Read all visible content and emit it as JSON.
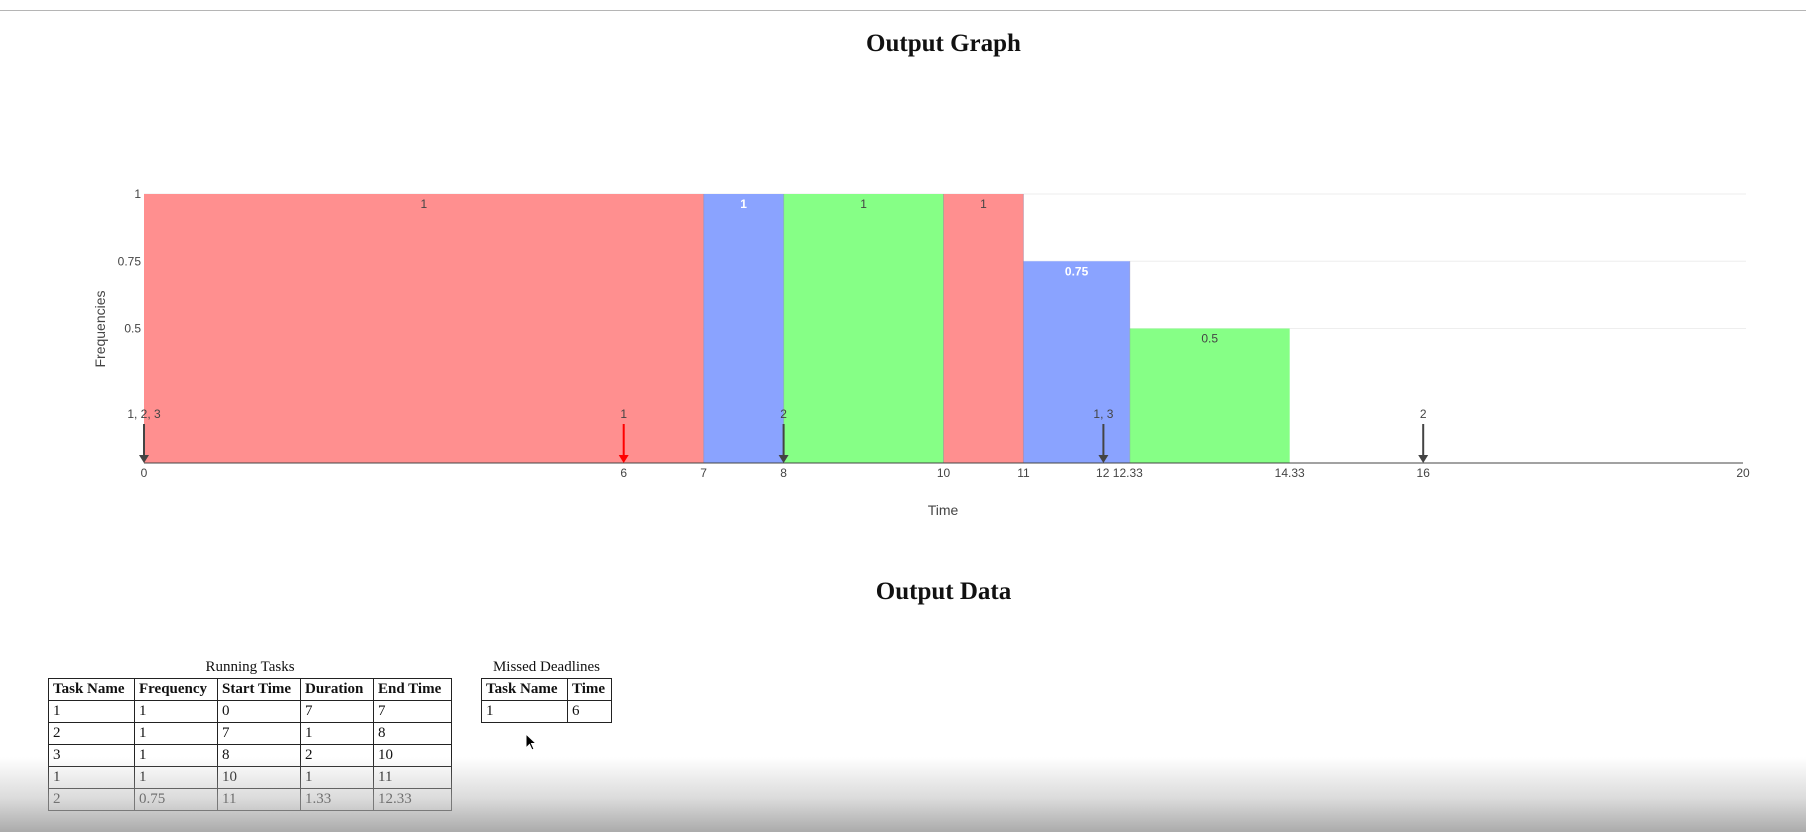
{
  "graph_heading": "Output Graph",
  "data_heading": "Output Data",
  "chart_data": {
    "type": "bar",
    "xlabel": "Time",
    "ylabel": "Frequencies",
    "xlim": [
      0,
      20
    ],
    "ylim": [
      0,
      1
    ],
    "x_ticks": [
      "0",
      "6",
      "7",
      "8",
      "10",
      "11",
      "12",
      "12.33",
      "14.33",
      "16",
      "20"
    ],
    "x_tick_values": [
      0,
      6,
      7,
      8,
      10,
      11,
      12,
      12.33,
      14.33,
      16,
      20
    ],
    "y_ticks": [
      "1",
      "0.75",
      "0.5"
    ],
    "y_tick_values": [
      1,
      0.75,
      0.5
    ],
    "grid": true,
    "colors": {
      "1": "#ff8f8f",
      "2": "#8aa3ff",
      "3": "#86ff86"
    },
    "segments": [
      {
        "task": "1",
        "start": 0,
        "end": 7,
        "frequency": 1,
        "label": "1"
      },
      {
        "task": "2",
        "start": 7,
        "end": 8,
        "frequency": 1,
        "label": "1"
      },
      {
        "task": "3",
        "start": 8,
        "end": 10,
        "frequency": 1,
        "label": "1"
      },
      {
        "task": "1",
        "start": 10,
        "end": 11,
        "frequency": 1,
        "label": "1"
      },
      {
        "task": "2",
        "start": 11,
        "end": 12.33,
        "frequency": 0.75,
        "label": "0.75"
      },
      {
        "task": "3",
        "start": 12.33,
        "end": 14.33,
        "frequency": 0.5,
        "label": "0.5"
      }
    ],
    "arrivals": [
      {
        "time": 0,
        "label": "1, 2, 3",
        "missed": false
      },
      {
        "time": 6,
        "label": "1",
        "missed": true
      },
      {
        "time": 8,
        "label": "2",
        "missed": false
      },
      {
        "time": 12,
        "label": "1, 3",
        "missed": false
      },
      {
        "time": 16,
        "label": "2",
        "missed": false
      }
    ],
    "arrow_colors": {
      "normal": "#444444",
      "missed": "#ff0000"
    }
  },
  "running_tasks": {
    "caption": "Running Tasks",
    "headers": [
      "Task Name",
      "Frequency",
      "Start Time",
      "Duration",
      "End Time"
    ],
    "rows": [
      [
        "1",
        "1",
        "0",
        "7",
        "7"
      ],
      [
        "2",
        "1",
        "7",
        "1",
        "8"
      ],
      [
        "3",
        "1",
        "8",
        "2",
        "10"
      ],
      [
        "1",
        "1",
        "10",
        "1",
        "11"
      ],
      [
        "2",
        "0.75",
        "11",
        "1.33",
        "12.33"
      ]
    ]
  },
  "missed_deadlines": {
    "caption": "Missed Deadlines",
    "headers": [
      "Task Name",
      "Time"
    ],
    "rows": [
      [
        "1",
        "6"
      ]
    ]
  }
}
